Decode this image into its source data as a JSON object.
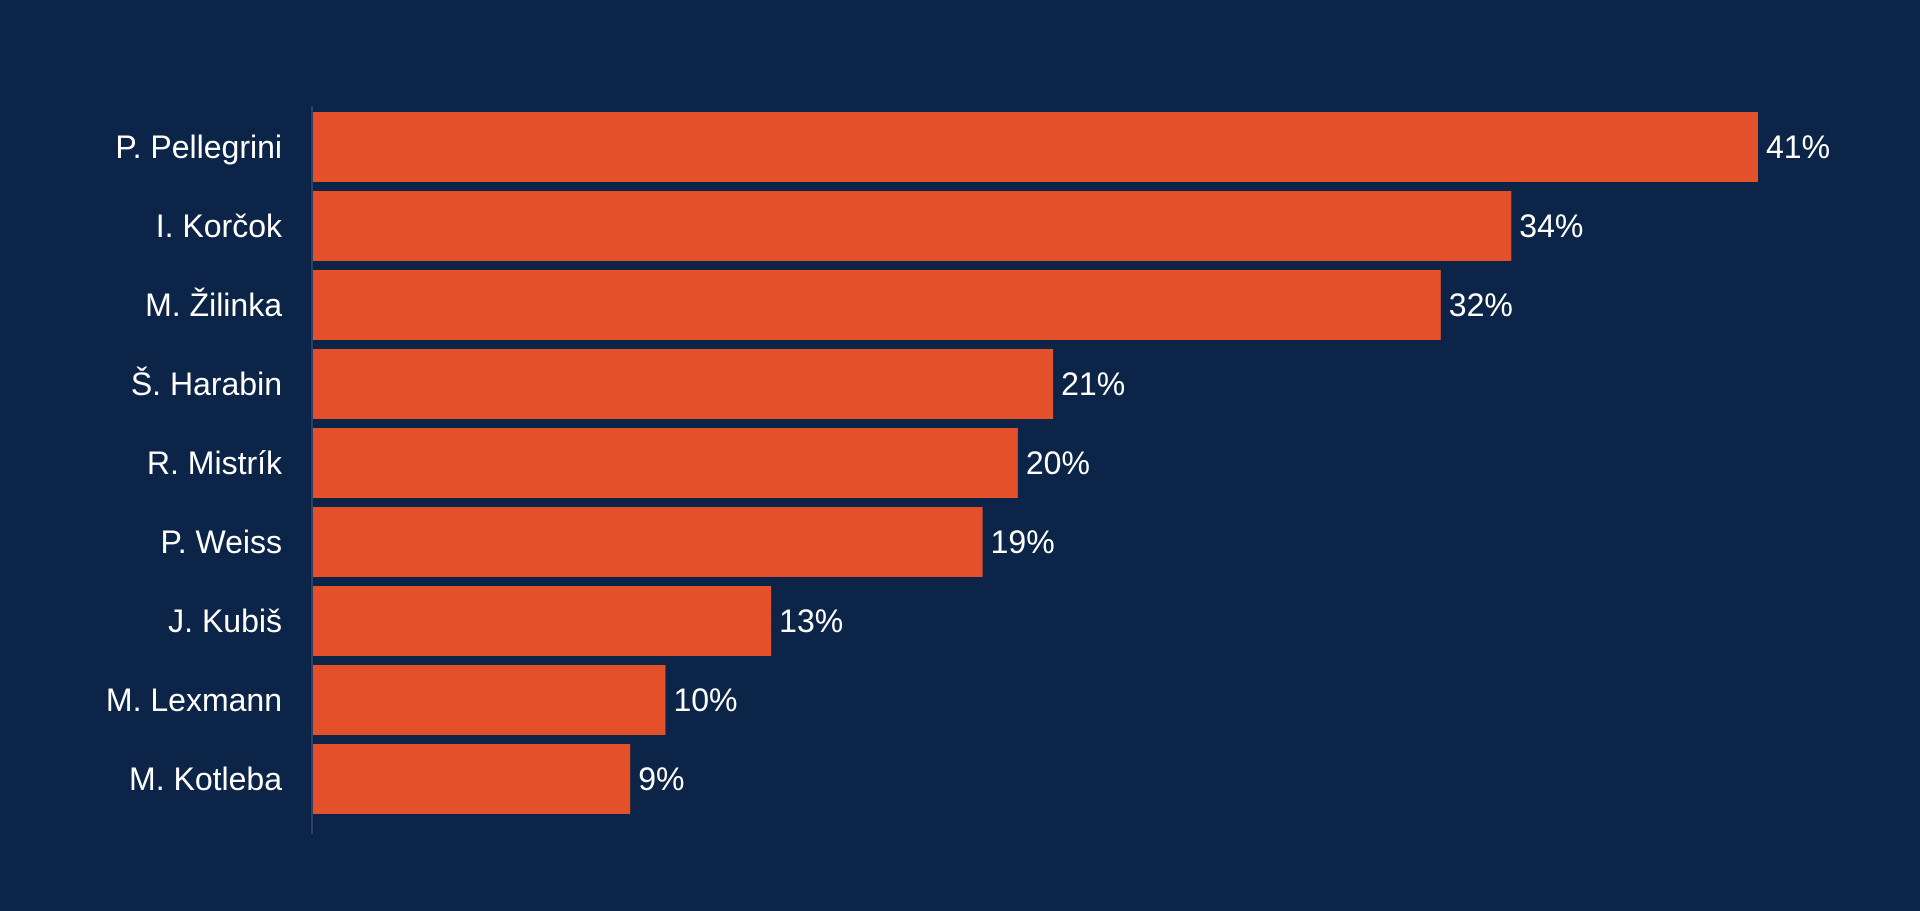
{
  "colors": {
    "background": "#0b2447",
    "bar": "#e3502a",
    "text": "#ffffff",
    "axis": "#2a3f63"
  },
  "chart_data": {
    "type": "bar",
    "orientation": "horizontal",
    "categories": [
      "P. Pellegrini",
      "I. Korčok",
      "M. Žilinka",
      "Š. Harabin",
      "R. Mistrík",
      "P. Weiss",
      "J. Kubiš",
      "M. Lexmann",
      "M. Kotleba"
    ],
    "values": [
      41,
      34,
      32,
      21,
      20,
      19,
      13,
      10,
      9
    ],
    "value_labels": [
      "41%",
      "34%",
      "32%",
      "21%",
      "20%",
      "19%",
      "13%",
      "10%",
      "9%"
    ],
    "unit": "%",
    "title": "",
    "xlabel": "",
    "ylabel": "",
    "xlim": [
      0,
      41
    ],
    "grid": false,
    "legend": "none"
  }
}
